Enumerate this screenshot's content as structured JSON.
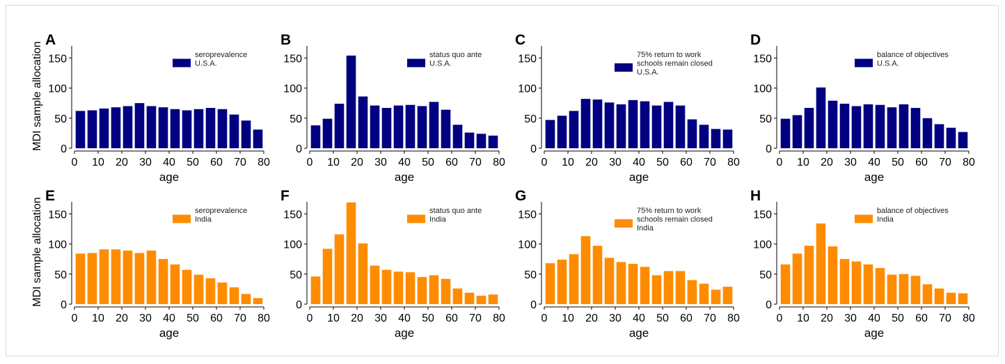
{
  "shared": {
    "ylabel": "MDI sample allocation",
    "xlabel": "age",
    "colors": {
      "usa": "#000080",
      "india": "#ff8c00"
    }
  },
  "chart_data": [
    {
      "type": "bar",
      "panel_label": "A",
      "legend": [
        "seroprevalence",
        "U.S.A."
      ],
      "x": [
        2.5,
        7.5,
        12.5,
        17.5,
        22.5,
        27.5,
        32.5,
        37.5,
        42.5,
        47.5,
        52.5,
        57.5,
        62.5,
        67.5,
        72.5,
        77.5
      ],
      "values": [
        62,
        63,
        66,
        68,
        70,
        75,
        70,
        68,
        65,
        63,
        65,
        67,
        65,
        56,
        46,
        31
      ],
      "xlim": [
        0,
        80
      ],
      "ylim": [
        0,
        170
      ],
      "xticks": [
        0,
        10,
        20,
        30,
        40,
        50,
        60,
        70,
        80
      ],
      "yticks": [
        0,
        50,
        100,
        150
      ],
      "xlabel": "age",
      "ylabel": "MDI sample allocation",
      "color": "#000080",
      "legend_position": "top-right"
    },
    {
      "type": "bar",
      "panel_label": "B",
      "legend": [
        "status quo ante",
        "U.S.A."
      ],
      "x": [
        2.5,
        7.5,
        12.5,
        17.5,
        22.5,
        27.5,
        32.5,
        37.5,
        42.5,
        47.5,
        52.5,
        57.5,
        62.5,
        67.5,
        72.5,
        77.5
      ],
      "values": [
        38,
        49,
        74,
        154,
        86,
        71,
        67,
        71,
        72,
        70,
        77,
        64,
        39,
        26,
        24,
        21
      ],
      "xlim": [
        0,
        80
      ],
      "ylim": [
        0,
        170
      ],
      "xticks": [
        0,
        10,
        20,
        30,
        40,
        50,
        60,
        70,
        80
      ],
      "yticks": [
        0,
        50,
        100,
        150
      ],
      "xlabel": "age",
      "ylabel": "",
      "color": "#000080",
      "legend_position": "top-right"
    },
    {
      "type": "bar",
      "panel_label": "C",
      "legend": [
        "75% return to work",
        "schools remain closed",
        "U.S.A."
      ],
      "x": [
        2.5,
        7.5,
        12.5,
        17.5,
        22.5,
        27.5,
        32.5,
        37.5,
        42.5,
        47.5,
        52.5,
        57.5,
        62.5,
        67.5,
        72.5,
        77.5
      ],
      "values": [
        47,
        54,
        62,
        82,
        81,
        76,
        73,
        80,
        78,
        71,
        77,
        71,
        48,
        39,
        32,
        31
      ],
      "xlim": [
        0,
        80
      ],
      "ylim": [
        0,
        170
      ],
      "xticks": [
        0,
        10,
        20,
        30,
        40,
        50,
        60,
        70,
        80
      ],
      "yticks": [
        0,
        50,
        100,
        150
      ],
      "xlabel": "age",
      "ylabel": "",
      "color": "#000080",
      "legend_position": "top-right"
    },
    {
      "type": "bar",
      "panel_label": "D",
      "legend": [
        "balance of objectives",
        "U.S.A."
      ],
      "x": [
        2.5,
        7.5,
        12.5,
        17.5,
        22.5,
        27.5,
        32.5,
        37.5,
        42.5,
        47.5,
        52.5,
        57.5,
        62.5,
        67.5,
        72.5,
        77.5
      ],
      "values": [
        49,
        55,
        67,
        101,
        79,
        74,
        70,
        73,
        72,
        68,
        73,
        67,
        50,
        40,
        34,
        27
      ],
      "xlim": [
        0,
        80
      ],
      "ylim": [
        0,
        170
      ],
      "xticks": [
        0,
        10,
        20,
        30,
        40,
        50,
        60,
        70,
        80
      ],
      "yticks": [
        0,
        50,
        100,
        150
      ],
      "xlabel": "age",
      "ylabel": "",
      "color": "#000080",
      "legend_position": "top-right"
    },
    {
      "type": "bar",
      "panel_label": "E",
      "legend": [
        "seroprevalence",
        "India"
      ],
      "x": [
        2.5,
        7.5,
        12.5,
        17.5,
        22.5,
        27.5,
        32.5,
        37.5,
        42.5,
        47.5,
        52.5,
        57.5,
        62.5,
        67.5,
        72.5,
        77.5
      ],
      "values": [
        84,
        85,
        91,
        91,
        89,
        85,
        89,
        75,
        66,
        57,
        49,
        43,
        36,
        28,
        17,
        10
      ],
      "xlim": [
        0,
        80
      ],
      "ylim": [
        0,
        170
      ],
      "xticks": [
        0,
        10,
        20,
        30,
        40,
        50,
        60,
        70,
        80
      ],
      "yticks": [
        0,
        50,
        100,
        150
      ],
      "xlabel": "age",
      "ylabel": "MDI sample allocation",
      "color": "#ff8c00",
      "legend_position": "top-right"
    },
    {
      "type": "bar",
      "panel_label": "F",
      "legend": [
        "status quo ante",
        "India"
      ],
      "x": [
        2.5,
        7.5,
        12.5,
        17.5,
        22.5,
        27.5,
        32.5,
        37.5,
        42.5,
        47.5,
        52.5,
        57.5,
        62.5,
        67.5,
        72.5,
        77.5
      ],
      "values": [
        46,
        92,
        116,
        169,
        101,
        64,
        57,
        54,
        53,
        45,
        48,
        42,
        26,
        19,
        14,
        16
      ],
      "xlim": [
        0,
        80
      ],
      "ylim": [
        0,
        170
      ],
      "xticks": [
        0,
        10,
        20,
        30,
        40,
        50,
        60,
        70,
        80
      ],
      "yticks": [
        0,
        50,
        100,
        150
      ],
      "xlabel": "age",
      "ylabel": "",
      "color": "#ff8c00",
      "legend_position": "top-right"
    },
    {
      "type": "bar",
      "panel_label": "G",
      "legend": [
        "75% return to work",
        "schools remain closed",
        "India"
      ],
      "x": [
        2.5,
        7.5,
        12.5,
        17.5,
        22.5,
        27.5,
        32.5,
        37.5,
        42.5,
        47.5,
        52.5,
        57.5,
        62.5,
        67.5,
        72.5,
        77.5
      ],
      "values": [
        68,
        74,
        83,
        113,
        97,
        77,
        70,
        67,
        62,
        48,
        55,
        55,
        40,
        34,
        24,
        29
      ],
      "xlim": [
        0,
        80
      ],
      "ylim": [
        0,
        170
      ],
      "xticks": [
        0,
        10,
        20,
        30,
        40,
        50,
        60,
        70,
        80
      ],
      "yticks": [
        0,
        50,
        100,
        150
      ],
      "xlabel": "age",
      "ylabel": "",
      "color": "#ff8c00",
      "legend_position": "top-right"
    },
    {
      "type": "bar",
      "panel_label": "H",
      "legend": [
        "balance of objectives",
        "India"
      ],
      "x": [
        2.5,
        7.5,
        12.5,
        17.5,
        22.5,
        27.5,
        32.5,
        37.5,
        42.5,
        47.5,
        52.5,
        57.5,
        62.5,
        67.5,
        72.5,
        77.5
      ],
      "values": [
        66,
        84,
        97,
        134,
        96,
        75,
        71,
        66,
        60,
        49,
        50,
        47,
        33,
        26,
        19,
        18
      ],
      "xlim": [
        0,
        80
      ],
      "ylim": [
        0,
        170
      ],
      "xticks": [
        0,
        10,
        20,
        30,
        40,
        50,
        60,
        70,
        80
      ],
      "yticks": [
        0,
        50,
        100,
        150
      ],
      "xlabel": "age",
      "ylabel": "",
      "color": "#ff8c00",
      "legend_position": "top-right"
    }
  ]
}
